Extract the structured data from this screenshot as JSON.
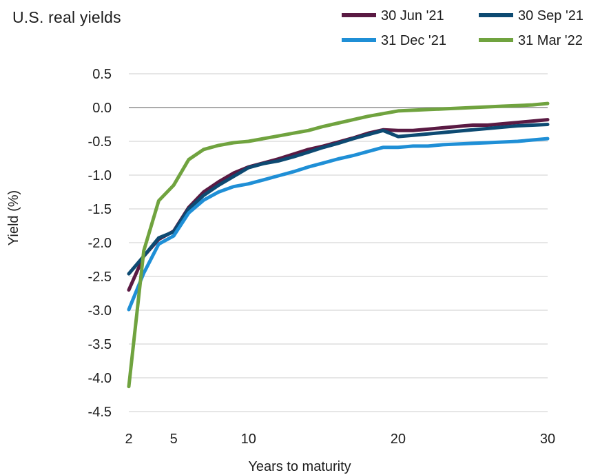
{
  "chart_data": {
    "type": "line",
    "title": "U.S. real yields",
    "xlabel": "Years to maturity",
    "ylabel": "Yield (%)",
    "xlim": [
      2,
      30
    ],
    "ylim": [
      -4.5,
      0.5
    ],
    "x_ticks": [
      2,
      5,
      10,
      20,
      30
    ],
    "y_ticks": [
      0.5,
      0.0,
      -0.5,
      -1.0,
      -1.5,
      -2.0,
      -2.5,
      -3.0,
      -3.5,
      -4.0,
      -4.5
    ],
    "x_tick_labels": [
      "2",
      "5",
      "10",
      "20",
      "30"
    ],
    "y_tick_labels": [
      "0.5",
      "0.0",
      "-0.5",
      "-1.0",
      "-1.5",
      "-2.0",
      "-2.5",
      "-3.0",
      "-3.5",
      "-4.0",
      "-4.5"
    ],
    "grid": "horizontal",
    "legend_position": "top-right",
    "series": [
      {
        "name": "30 Jun '21",
        "color": "#5a1a43",
        "x": [
          2,
          3,
          4,
          5,
          6,
          7,
          8,
          9,
          10,
          11,
          12,
          13,
          14,
          15,
          16,
          17,
          18,
          19,
          20,
          21,
          22,
          23,
          24,
          25,
          26,
          27,
          28,
          29,
          30
        ],
        "y": [
          -2.7,
          -2.2,
          -1.95,
          -1.83,
          -1.48,
          -1.25,
          -1.1,
          -0.97,
          -0.88,
          -0.82,
          -0.76,
          -0.69,
          -0.62,
          -0.57,
          -0.51,
          -0.45,
          -0.38,
          -0.33,
          -0.34,
          -0.34,
          -0.32,
          -0.3,
          -0.28,
          -0.26,
          -0.26,
          -0.24,
          -0.22,
          -0.2,
          -0.18
        ]
      },
      {
        "name": "30 Sep '21",
        "color": "#0d4a72",
        "x": [
          2,
          3,
          4,
          5,
          6,
          7,
          8,
          9,
          10,
          11,
          12,
          13,
          14,
          15,
          16,
          17,
          18,
          19,
          20,
          21,
          22,
          23,
          24,
          25,
          26,
          27,
          28,
          29,
          30
        ],
        "y": [
          -2.46,
          -2.2,
          -1.93,
          -1.84,
          -1.5,
          -1.3,
          -1.15,
          -1.02,
          -0.89,
          -0.83,
          -0.79,
          -0.73,
          -0.66,
          -0.59,
          -0.53,
          -0.46,
          -0.4,
          -0.34,
          -0.43,
          -0.41,
          -0.39,
          -0.37,
          -0.35,
          -0.33,
          -0.31,
          -0.29,
          -0.27,
          -0.26,
          -0.25
        ]
      },
      {
        "name": "31 Dec '21",
        "color": "#1f8fd6",
        "x": [
          2,
          3,
          4,
          5,
          6,
          7,
          8,
          9,
          10,
          11,
          12,
          13,
          14,
          15,
          16,
          17,
          18,
          19,
          20,
          21,
          22,
          23,
          24,
          25,
          26,
          27,
          28,
          29,
          30
        ],
        "y": [
          -2.99,
          -2.45,
          -2.02,
          -1.9,
          -1.56,
          -1.37,
          -1.25,
          -1.17,
          -1.13,
          -1.07,
          -1.01,
          -0.95,
          -0.88,
          -0.82,
          -0.76,
          -0.71,
          -0.65,
          -0.59,
          -0.59,
          -0.57,
          -0.57,
          -0.55,
          -0.54,
          -0.53,
          -0.52,
          -0.51,
          -0.5,
          -0.48,
          -0.46
        ]
      },
      {
        "name": "31 Mar '22",
        "color": "#70a33f",
        "x": [
          2,
          3,
          4,
          5,
          6,
          7,
          8,
          9,
          10,
          11,
          12,
          13,
          14,
          15,
          16,
          17,
          18,
          19,
          20,
          21,
          22,
          23,
          24,
          25,
          26,
          27,
          28,
          29,
          30
        ],
        "y": [
          -4.13,
          -2.12,
          -1.38,
          -1.15,
          -0.77,
          -0.62,
          -0.56,
          -0.52,
          -0.5,
          -0.46,
          -0.42,
          -0.38,
          -0.34,
          -0.28,
          -0.23,
          -0.18,
          -0.13,
          -0.09,
          -0.05,
          -0.04,
          -0.03,
          -0.02,
          -0.01,
          0.0,
          0.01,
          0.02,
          0.03,
          0.04,
          0.06
        ]
      }
    ]
  }
}
